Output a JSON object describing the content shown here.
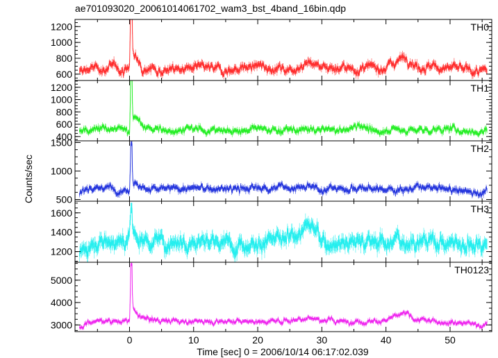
{
  "chart_data": {
    "type": "line",
    "title": "ae701093020_20061014061702_wam3_bst_4band_16bin.qdp",
    "xlabel": "Time [sec] 0 = 2006/10/14 06:17:02.039",
    "ylabel": "Counts/sec",
    "xlim": [
      -8.5,
      56.5
    ],
    "x_ticks": [
      0,
      10,
      20,
      30,
      40,
      50
    ],
    "x_tick_labels": [
      "0",
      "10",
      "20",
      "30",
      "40",
      "50"
    ],
    "grid": false,
    "legend": "none",
    "panels": [
      {
        "name": "TH0",
        "color": "#ff2b2b",
        "ylim": [
          520,
          1290
        ],
        "y_ticks": [
          600,
          800,
          1000,
          1200
        ],
        "baseline": 660,
        "noise": 40,
        "points": [
          [
            -7.8,
            620
          ],
          [
            -6,
            680
          ],
          [
            -4,
            660
          ],
          [
            -2,
            700
          ],
          [
            -1,
            640
          ],
          [
            0,
            690
          ],
          [
            0.25,
            1700
          ],
          [
            0.55,
            850
          ],
          [
            1,
            800
          ],
          [
            2,
            700
          ],
          [
            5,
            650
          ],
          [
            10,
            680
          ],
          [
            15,
            650
          ],
          [
            20,
            700
          ],
          [
            25,
            660
          ],
          [
            28,
            750
          ],
          [
            30,
            700
          ],
          [
            35,
            660
          ],
          [
            40,
            690
          ],
          [
            43,
            830
          ],
          [
            45,
            700
          ],
          [
            50,
            680
          ],
          [
            55,
            620
          ],
          [
            55.8,
            640
          ]
        ]
      },
      {
        "name": "TH1",
        "color": "#22ee22",
        "ylim": [
          330,
          1310
        ],
        "y_ticks": [
          400,
          600,
          800,
          1000,
          1200
        ],
        "baseline": 500,
        "noise": 40,
        "points": [
          [
            -7.8,
            480
          ],
          [
            -5,
            560
          ],
          [
            -3,
            500
          ],
          [
            -1,
            520
          ],
          [
            0,
            480
          ],
          [
            0.25,
            1500
          ],
          [
            0.55,
            750
          ],
          [
            1,
            700
          ],
          [
            2,
            560
          ],
          [
            5,
            500
          ],
          [
            10,
            520
          ],
          [
            15,
            490
          ],
          [
            20,
            520
          ],
          [
            25,
            500
          ],
          [
            30,
            510
          ],
          [
            34,
            500
          ],
          [
            36,
            620
          ],
          [
            38,
            450
          ],
          [
            40,
            520
          ],
          [
            45,
            500
          ],
          [
            50,
            520
          ],
          [
            55,
            470
          ],
          [
            55.8,
            520
          ]
        ]
      },
      {
        "name": "TH2",
        "color": "#2233dd",
        "ylim": [
          470,
          1530
        ],
        "y_ticks": [
          500,
          1000,
          1500
        ],
        "baseline": 690,
        "noise": 45,
        "points": [
          [
            -7.8,
            620
          ],
          [
            -6,
            720
          ],
          [
            -3,
            700
          ],
          [
            -1,
            680
          ],
          [
            0,
            700
          ],
          [
            0.25,
            1480
          ],
          [
            0.55,
            820
          ],
          [
            1,
            780
          ],
          [
            2,
            700
          ],
          [
            5,
            680
          ],
          [
            10,
            700
          ],
          [
            15,
            680
          ],
          [
            20,
            700
          ],
          [
            25,
            720
          ],
          [
            30,
            690
          ],
          [
            35,
            700
          ],
          [
            40,
            680
          ],
          [
            45,
            700
          ],
          [
            50,
            680
          ],
          [
            55,
            620
          ],
          [
            55.8,
            650
          ]
        ]
      },
      {
        "name": "TH3",
        "color": "#22eeee",
        "ylim": [
          1090,
          1720
        ],
        "y_ticks": [
          1200,
          1400,
          1600
        ],
        "baseline": 1300,
        "noise": 60,
        "points": [
          [
            -7.8,
            1150
          ],
          [
            -6,
            1300
          ],
          [
            -3,
            1320
          ],
          [
            -1,
            1280
          ],
          [
            0,
            1330
          ],
          [
            0.25,
            1650
          ],
          [
            0.55,
            1400
          ],
          [
            1,
            1350
          ],
          [
            5,
            1300
          ],
          [
            10,
            1320
          ],
          [
            15,
            1280
          ],
          [
            20,
            1300
          ],
          [
            25,
            1320
          ],
          [
            28,
            1500
          ],
          [
            30,
            1300
          ],
          [
            35,
            1310
          ],
          [
            40,
            1300
          ],
          [
            45,
            1320
          ],
          [
            50,
            1290
          ],
          [
            55,
            1280
          ],
          [
            55.8,
            1300
          ]
        ]
      },
      {
        "name": "TH0123",
        "color": "#ee22ee",
        "ylim": [
          2700,
          5800
        ],
        "y_ticks": [
          3000,
          4000,
          5000
        ],
        "baseline": 3150,
        "noise": 80,
        "points": [
          [
            -7.8,
            2900
          ],
          [
            -6,
            3150
          ],
          [
            -3,
            3200
          ],
          [
            -1,
            3150
          ],
          [
            0,
            3180
          ],
          [
            0.25,
            5700
          ],
          [
            0.55,
            3700
          ],
          [
            1,
            3500
          ],
          [
            2,
            3300
          ],
          [
            5,
            3200
          ],
          [
            10,
            3150
          ],
          [
            15,
            3180
          ],
          [
            20,
            3150
          ],
          [
            25,
            3200
          ],
          [
            28,
            3350
          ],
          [
            30,
            3200
          ],
          [
            35,
            3150
          ],
          [
            40,
            3200
          ],
          [
            43,
            3500
          ],
          [
            45,
            3200
          ],
          [
            50,
            3150
          ],
          [
            55,
            3000
          ],
          [
            55.8,
            3050
          ]
        ]
      }
    ]
  }
}
